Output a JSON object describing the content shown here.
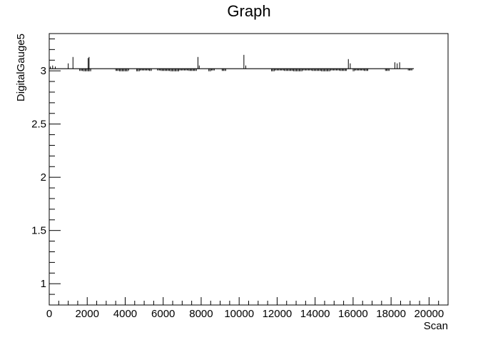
{
  "chart_data": {
    "type": "line",
    "title": "Graph",
    "xlabel": "Scan",
    "ylabel": "DigitalGauge5",
    "xlim": [
      0,
      21000
    ],
    "ylim": [
      0.8,
      3.35
    ],
    "xticks": [
      0,
      2000,
      4000,
      6000,
      8000,
      10000,
      12000,
      14000,
      16000,
      18000,
      20000
    ],
    "xtick_labels": [
      "0",
      "2000",
      "4000",
      "6000",
      "8000",
      "10000",
      "12000",
      "14000",
      "16000",
      "18000",
      "20000"
    ],
    "yticks": [
      1,
      1.5,
      2,
      2.5,
      3
    ],
    "ytick_labels": [
      "1",
      "1.5",
      "2",
      "2.5",
      "3"
    ],
    "grid": false,
    "baseline": 3.02,
    "x_range": [
      0,
      19200
    ],
    "series": [
      {
        "name": "DigitalGauge5",
        "spikes": [
          {
            "x": 60,
            "y": 3.04
          },
          {
            "x": 180,
            "y": 3.05
          },
          {
            "x": 320,
            "y": 3.04
          },
          {
            "x": 1000,
            "y": 3.07
          },
          {
            "x": 1250,
            "y": 3.13
          },
          {
            "x": 2050,
            "y": 3.12
          },
          {
            "x": 2100,
            "y": 3.13
          },
          {
            "x": 7830,
            "y": 3.13
          },
          {
            "x": 7900,
            "y": 3.05
          },
          {
            "x": 10250,
            "y": 3.15
          },
          {
            "x": 10350,
            "y": 3.05
          },
          {
            "x": 15750,
            "y": 3.11
          },
          {
            "x": 15850,
            "y": 3.07
          },
          {
            "x": 18200,
            "y": 3.08
          },
          {
            "x": 18320,
            "y": 3.07
          },
          {
            "x": 18450,
            "y": 3.08
          }
        ],
        "dips": [
          {
            "from": 1600,
            "to": 2200,
            "y": 3.0
          },
          {
            "from": 3500,
            "to": 4200,
            "y": 3.0
          },
          {
            "from": 4600,
            "to": 5400,
            "y": 3.0
          },
          {
            "from": 5700,
            "to": 7800,
            "y": 3.0
          },
          {
            "from": 8400,
            "to": 8700,
            "y": 3.0
          },
          {
            "from": 9100,
            "to": 9300,
            "y": 3.0
          },
          {
            "from": 11700,
            "to": 15700,
            "y": 3.0
          },
          {
            "from": 16000,
            "to": 16800,
            "y": 3.0
          },
          {
            "from": 17700,
            "to": 17900,
            "y": 3.0
          },
          {
            "from": 18900,
            "to": 19100,
            "y": 3.0
          }
        ]
      }
    ]
  }
}
